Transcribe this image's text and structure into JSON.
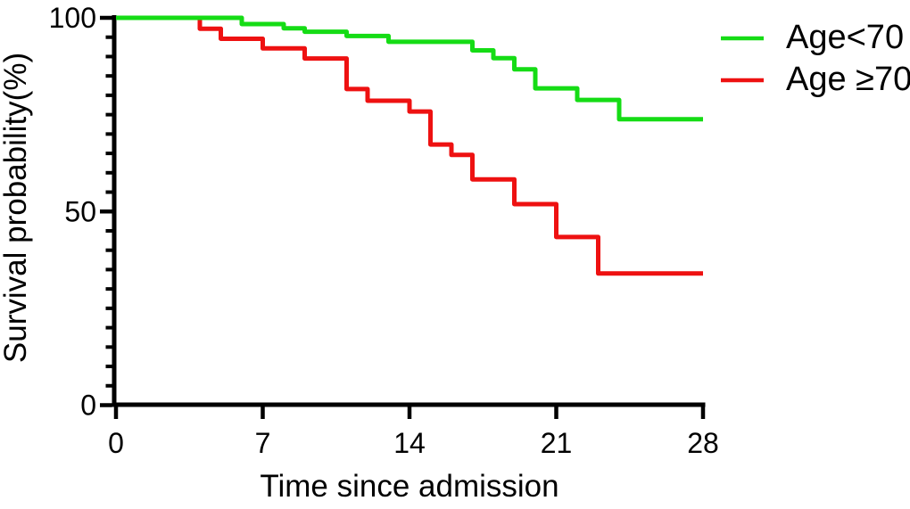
{
  "figure": {
    "background": "#FFFFFF",
    "text_color": "#000000"
  },
  "chart_data": {
    "type": "line",
    "subtype": "kaplan-meier-step-curve",
    "title": "",
    "xlabel": "Time since admission",
    "ylabel": "Survival probability(%)",
    "xlim": [
      0,
      28
    ],
    "ylim": [
      0,
      100
    ],
    "x_ticks": [
      0,
      7,
      14,
      21,
      28
    ],
    "y_ticks_major": [
      0,
      50,
      100
    ],
    "y_tick_minor_step": 5,
    "grid": false,
    "legend_position": "top-right",
    "axis_color": "#000000",
    "series": [
      {
        "key": "age-lt-70",
        "name": "Age<70",
        "color": "#15DC15",
        "steps": [
          [
            0,
            100
          ],
          [
            6,
            100
          ],
          [
            6,
            98.4
          ],
          [
            8,
            98.4
          ],
          [
            8,
            97.3
          ],
          [
            9,
            97.3
          ],
          [
            9,
            96.4
          ],
          [
            11,
            96.4
          ],
          [
            11,
            95.3
          ],
          [
            13,
            95.3
          ],
          [
            13,
            93.8
          ],
          [
            17,
            93.8
          ],
          [
            17,
            91.6
          ],
          [
            18,
            91.6
          ],
          [
            18,
            89.6
          ],
          [
            19,
            89.6
          ],
          [
            19,
            86.7
          ],
          [
            20,
            86.7
          ],
          [
            20,
            81.8
          ],
          [
            22,
            81.8
          ],
          [
            22,
            78.8
          ],
          [
            24,
            78.8
          ],
          [
            24,
            73.8
          ],
          [
            28,
            73.8
          ]
        ]
      },
      {
        "key": "age-ge-70",
        "name": "Age ≥70",
        "color": "#EE1111",
        "steps": [
          [
            0,
            100
          ],
          [
            4,
            100
          ],
          [
            4,
            97.2
          ],
          [
            5,
            97.2
          ],
          [
            5,
            94.6
          ],
          [
            7,
            94.6
          ],
          [
            7,
            92.1
          ],
          [
            9,
            92.1
          ],
          [
            9,
            89.5
          ],
          [
            11,
            89.5
          ],
          [
            11,
            81.6
          ],
          [
            12,
            81.6
          ],
          [
            12,
            78.6
          ],
          [
            14,
            78.6
          ],
          [
            14,
            75.8
          ],
          [
            15,
            75.8
          ],
          [
            15,
            67.3
          ],
          [
            16,
            67.3
          ],
          [
            16,
            64.6
          ],
          [
            17,
            64.6
          ],
          [
            17,
            58.3
          ],
          [
            19,
            58.3
          ],
          [
            19,
            51.9
          ],
          [
            21,
            51.9
          ],
          [
            21,
            43.4
          ],
          [
            23,
            43.4
          ],
          [
            23,
            34
          ],
          [
            28,
            34
          ]
        ]
      }
    ]
  }
}
